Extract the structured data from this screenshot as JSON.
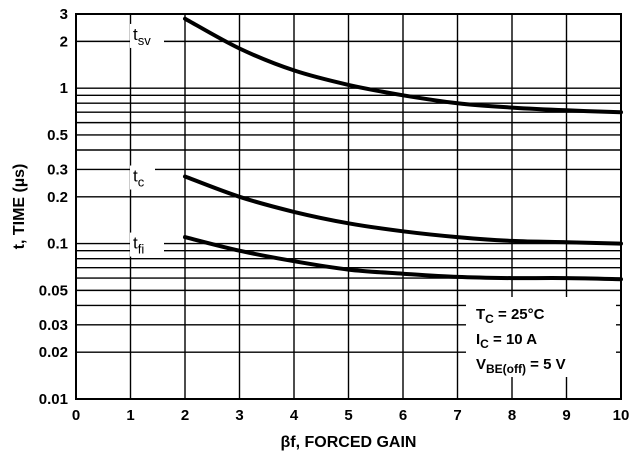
{
  "chart_data": {
    "type": "line",
    "title": "",
    "xlabel": "βf, FORCED GAIN",
    "ylabel": "t, TIME (µs)",
    "xlim": [
      0,
      10
    ],
    "ylim": [
      0.01,
      3
    ],
    "y_scale": "log",
    "grid": true,
    "x_ticks": [
      "0",
      "1",
      "2",
      "3",
      "4",
      "5",
      "6",
      "7",
      "8",
      "9",
      "10"
    ],
    "y_ticks": [
      {
        "value": 0.01,
        "label": "0.01"
      },
      {
        "value": 0.02,
        "label": "0.02"
      },
      {
        "value": 0.03,
        "label": "0.03"
      },
      {
        "value": 0.05,
        "label": "0.05"
      },
      {
        "value": 0.1,
        "label": "0.1"
      },
      {
        "value": 0.2,
        "label": "0.2"
      },
      {
        "value": 0.3,
        "label": "0.3"
      },
      {
        "value": 0.5,
        "label": "0.5"
      },
      {
        "value": 1,
        "label": "1"
      },
      {
        "value": 2,
        "label": "2"
      },
      {
        "value": 3,
        "label": "3"
      }
    ],
    "series": [
      {
        "name": "tsv",
        "label_main": "t",
        "label_sub": "sv",
        "label_at": [
          2,
          2.2
        ],
        "x": [
          2,
          3,
          4,
          5,
          6,
          7,
          8,
          9,
          10
        ],
        "y": [
          2.8,
          1.8,
          1.3,
          1.05,
          0.9,
          0.8,
          0.75,
          0.72,
          0.7
        ]
      },
      {
        "name": "tc",
        "label_main": "t",
        "label_sub": "c",
        "label_at": [
          2,
          0.27
        ],
        "x": [
          2,
          3,
          4,
          5,
          6,
          7,
          8,
          9,
          10
        ],
        "y": [
          0.27,
          0.2,
          0.16,
          0.135,
          0.12,
          0.11,
          0.104,
          0.102,
          0.1
        ]
      },
      {
        "name": "tfi",
        "label_main": "t",
        "label_sub": "fi",
        "label_at": [
          2,
          0.1
        ],
        "x": [
          2,
          3,
          4,
          5,
          6,
          7,
          8,
          9,
          10
        ],
        "y": [
          0.11,
          0.09,
          0.077,
          0.068,
          0.064,
          0.061,
          0.06,
          0.06,
          0.059
        ]
      }
    ],
    "conditions": [
      {
        "main": "T",
        "sub": "C",
        "rest": " = 25°C"
      },
      {
        "main": "I",
        "sub": "C",
        "rest": " = 10 A"
      },
      {
        "main": "V",
        "sub": "BE(off)",
        "rest": " = 5 V"
      }
    ]
  }
}
